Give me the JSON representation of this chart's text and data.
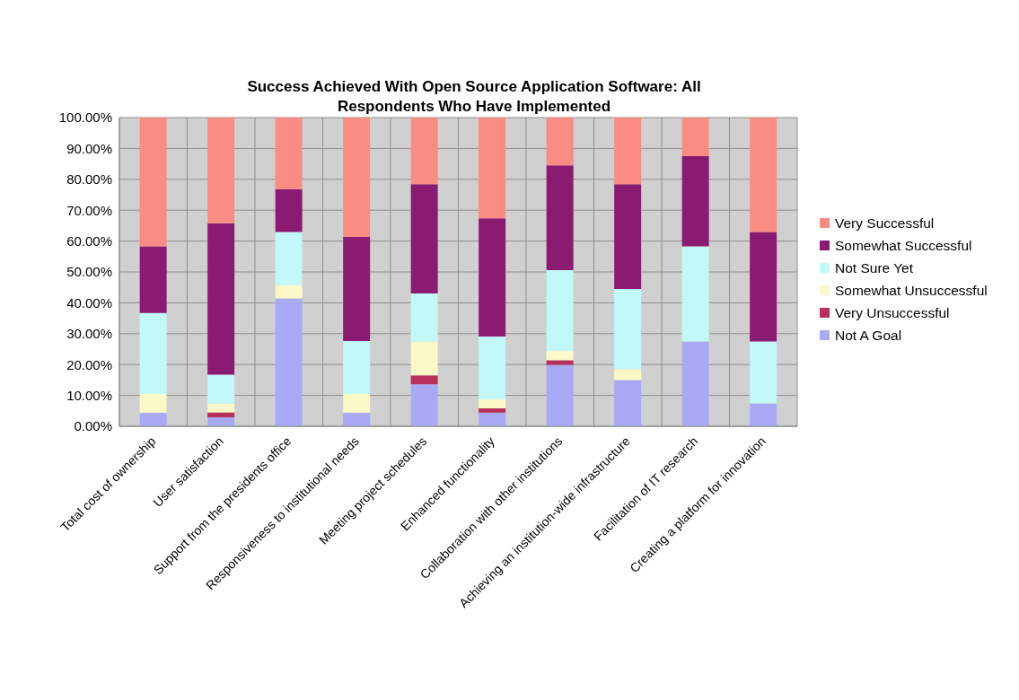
{
  "chart_data": {
    "type": "bar",
    "title": "Success Achieved With Open Source Application Software: All Respondents Who Have Implemented",
    "categories": [
      "Total cost of ownership",
      "User satisfaction",
      "Support from the presidents office",
      "Responsiveness to institutional needs",
      "Meeting project schedules",
      "Enhanced functionality",
      "Collaboration with other institutions",
      "Achieving an institution-wide infrastructure",
      "Facilitation of IT research",
      "Creating a platform for innovation"
    ],
    "stacked": true,
    "series": [
      {
        "name": "Not A Goal",
        "color": "#a9a9f5",
        "values": [
          4.4,
          2.9,
          41.4,
          4.4,
          13.6,
          4.4,
          19.9,
          15.0,
          27.5,
          7.4
        ]
      },
      {
        "name": "Very Unsuccessful",
        "color": "#b8305a",
        "values": [
          0,
          1.6,
          0,
          0,
          2.9,
          1.4,
          1.5,
          0,
          0,
          0
        ]
      },
      {
        "name": "Somewhat Unsuccessful",
        "color": "#fdf8c8",
        "values": [
          6.1,
          2.9,
          4.3,
          6.1,
          11.0,
          2.9,
          3.0,
          3.5,
          0,
          0
        ]
      },
      {
        "name": "Not Sure Yet",
        "color": "#c2f8f8",
        "values": [
          26.2,
          9.3,
          17.2,
          17.1,
          15.5,
          20.4,
          26.2,
          26.0,
          30.8,
          20.1
        ]
      },
      {
        "name": "Somewhat Successful",
        "color": "#8b1a73",
        "values": [
          21.6,
          49.1,
          13.9,
          33.8,
          35.4,
          38.3,
          33.9,
          33.9,
          29.2,
          35.4
        ]
      },
      {
        "name": "Very Successful",
        "color": "#fa8c84",
        "values": [
          41.7,
          34.2,
          23.2,
          38.6,
          21.6,
          32.6,
          15.5,
          21.6,
          12.5,
          37.1
        ]
      }
    ],
    "ylim": [
      0,
      100
    ],
    "yticks": [
      {
        "value": 0,
        "label": "0.00%"
      },
      {
        "value": 10,
        "label": "10.00%"
      },
      {
        "value": 20,
        "label": "20.00%"
      },
      {
        "value": 30,
        "label": "30.00%"
      },
      {
        "value": 40,
        "label": "40.00%"
      },
      {
        "value": 50,
        "label": "50.00%"
      },
      {
        "value": 60,
        "label": "60.00%"
      },
      {
        "value": 70,
        "label": "70.00%"
      },
      {
        "value": 80,
        "label": "80.00%"
      },
      {
        "value": 90,
        "label": "90.00%"
      },
      {
        "value": 100,
        "label": "100.00%"
      }
    ],
    "grid": true,
    "legend": "right"
  }
}
